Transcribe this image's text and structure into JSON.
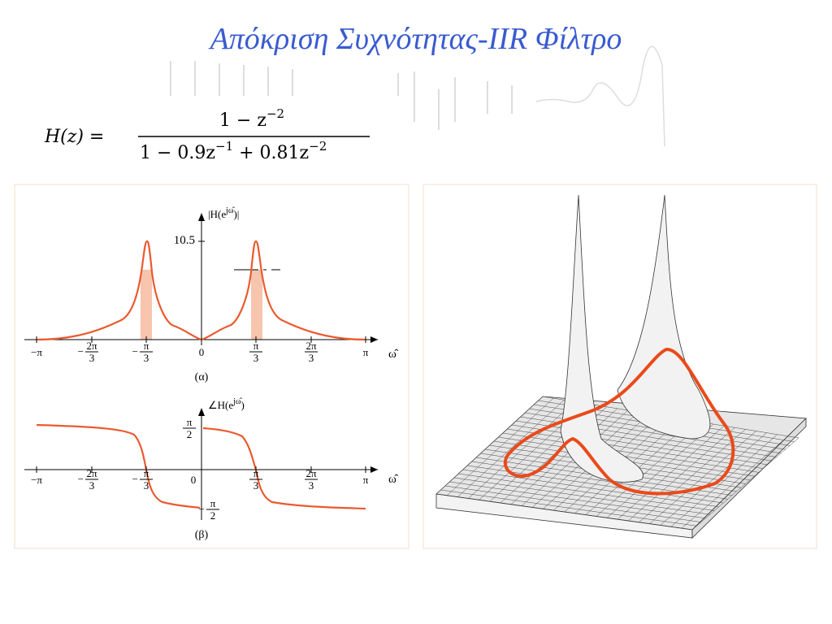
{
  "title": "Απόκριση Συχνότητας-IIR Φίλτρο",
  "equation": {
    "lhs": "H(z) =",
    "numerator": [
      "1 − z",
      "−2"
    ],
    "denominator": [
      "1 − 0.9z",
      "−1",
      " + 0.81z",
      "−2"
    ]
  },
  "magnitude_plot": {
    "y_label": [
      "|H(e",
      "jω̂",
      ")|"
    ],
    "y_tick": "10.5",
    "x_label": "ω̂",
    "caption": "(α)",
    "x_ticks": [
      {
        "sign": "−",
        "num": "π"
      },
      {
        "sign": "−",
        "num": "2π",
        "den": "3"
      },
      {
        "sign": "−",
        "num": "π",
        "den": "3"
      },
      {
        "num": "0"
      },
      {
        "num": "π",
        "den": "3"
      },
      {
        "num": "2π",
        "den": "3"
      },
      {
        "num": "π"
      }
    ]
  },
  "phase_plot": {
    "y_label": [
      "∠H(e",
      "jω̂",
      ")"
    ],
    "x_label": "ω̂",
    "caption": "(β)",
    "y_ticks": [
      {
        "num": "π",
        "den": "2"
      },
      {
        "sign": "−",
        "num": "π",
        "den": "2"
      }
    ],
    "x_ticks": [
      {
        "sign": "−",
        "num": "π"
      },
      {
        "sign": "−",
        "num": "2π",
        "den": "3"
      },
      {
        "sign": "−",
        "num": "π",
        "den": "3"
      },
      {
        "num": "0"
      },
      {
        "num": "π",
        "den": "3"
      },
      {
        "num": "2π",
        "den": "3"
      },
      {
        "num": "π"
      }
    ]
  }
}
